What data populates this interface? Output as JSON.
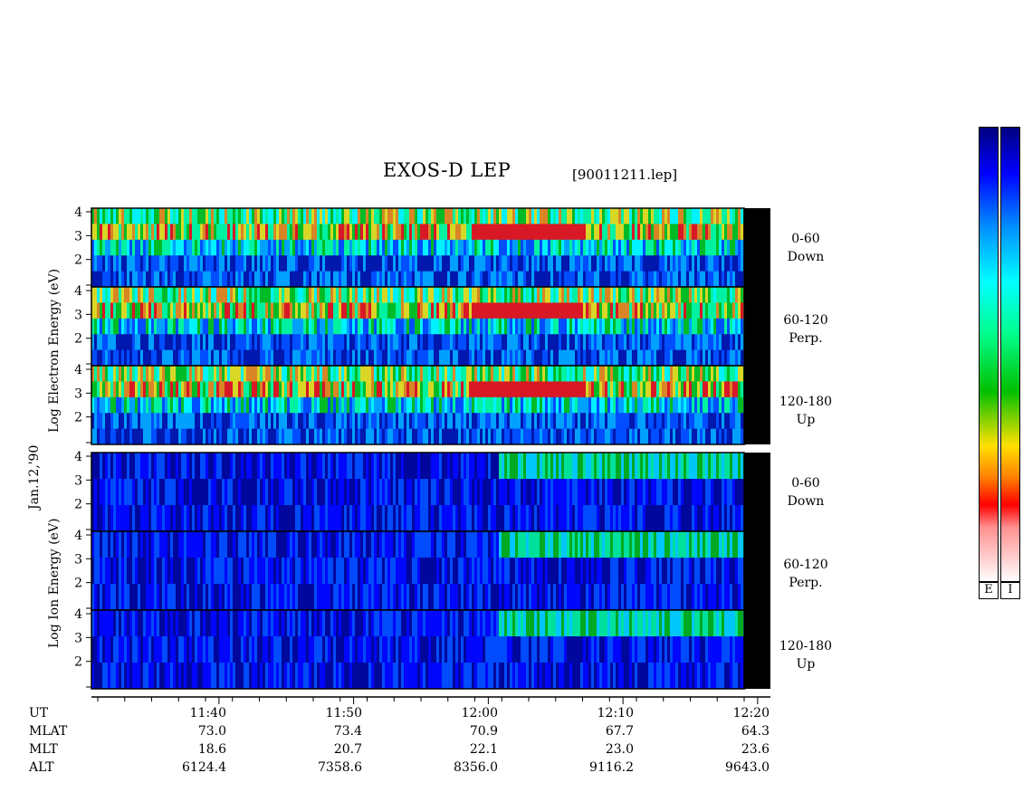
{
  "title": "EXOS-D LEP",
  "file_label": "[90011211.lep]",
  "date_label": "Jan.12,'90",
  "electron_ylabel": "Log   Electron   Energy (eV)",
  "ion_ylabel": "Log   Ion   Energy (eV)",
  "panel_side_labels": [
    {
      "range": "0-60",
      "dir": "Down"
    },
    {
      "range": "60-120",
      "dir": "Perp."
    },
    {
      "range": "120-180",
      "dir": "Up"
    },
    {
      "range": "0-60",
      "dir": "Down"
    },
    {
      "range": "60-120",
      "dir": "Perp."
    },
    {
      "range": "120-180",
      "dir": "Up"
    }
  ],
  "colorbar_labels": [
    "E",
    "I"
  ],
  "axis_rows": {
    "labels": [
      "UT",
      "MLAT",
      "MLT",
      "ALT"
    ],
    "times": [
      "11:40",
      "11:50",
      "12:00",
      "12:10",
      "12:20"
    ],
    "mlat": [
      "73.0",
      "73.4",
      "70.9",
      "67.7",
      "64.3"
    ],
    "mlt": [
      "18.6",
      "20.7",
      "22.1",
      "23.0",
      "23.6"
    ],
    "alt": [
      "6124.4",
      "7358.6",
      "8356.0",
      "9116.2",
      "9643.0"
    ]
  },
  "chart_data": {
    "type": "heatmap",
    "title": "EXOS-D LEP",
    "xlabel": "UT",
    "x_range": [
      "11:31",
      "12:20"
    ],
    "ylim": [
      1,
      4
    ],
    "y_ticks": [
      2,
      3,
      4
    ],
    "panels": [
      {
        "species": "Electron",
        "pitch_angle": "0-60",
        "direction": "Down"
      },
      {
        "species": "Electron",
        "pitch_angle": "60-120",
        "direction": "Perp."
      },
      {
        "species": "Electron",
        "pitch_angle": "120-180",
        "direction": "Up"
      },
      {
        "species": "Ion",
        "pitch_angle": "0-60",
        "direction": "Down"
      },
      {
        "species": "Ion",
        "pitch_angle": "60-120",
        "direction": "Perp."
      },
      {
        "species": "Ion",
        "pitch_angle": "120-180",
        "direction": "Up"
      }
    ],
    "colorscale": [
      "#ffffff",
      "#ff8080",
      "#ff0000",
      "#ff8000",
      "#ffff00",
      "#00c000",
      "#00ff80",
      "#00ffff",
      "#0080ff",
      "#0000ff",
      "#000080"
    ]
  }
}
